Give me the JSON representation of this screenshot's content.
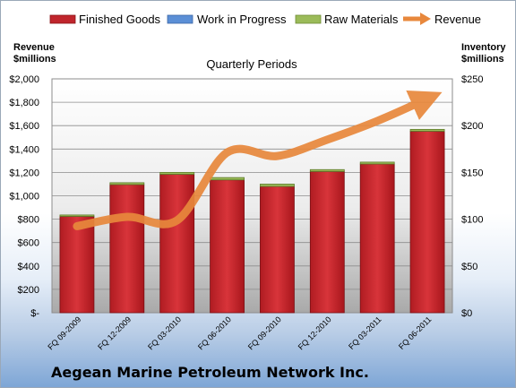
{
  "company": "Aegean Marine Petroleum Network Inc.",
  "chart_data": {
    "type": "bar",
    "subtitle": "Quarterly Periods",
    "categories": [
      "FQ 09-2009",
      "FQ 12-2009",
      "FQ 03-2010",
      "FQ 06-2010",
      "FQ 09-2010",
      "FQ 12-2010",
      "FQ 03-2011",
      "FQ 06-2011"
    ],
    "series": [
      {
        "name": "Finished Goods",
        "type": "stacked-bar",
        "axis": "right",
        "color": "#c0252c",
        "values": [
          103,
          137,
          148,
          142,
          135,
          151,
          159,
          194
        ]
      },
      {
        "name": "Work in Progress",
        "type": "stacked-bar",
        "axis": "right",
        "color": "#5b8fd6",
        "values": [
          0,
          0,
          0,
          0,
          0,
          0,
          0,
          0
        ]
      },
      {
        "name": "Raw Materials",
        "type": "stacked-bar",
        "axis": "right",
        "color": "#9bbb59",
        "values": [
          1.5,
          2,
          2,
          2.5,
          2.5,
          2,
          2,
          2
        ]
      },
      {
        "name": "Revenue",
        "type": "line",
        "axis": "left",
        "color": "#e8883c",
        "values": [
          740,
          820,
          790,
          1370,
          1340,
          1480,
          1640,
          1830
        ]
      }
    ],
    "left_axis": {
      "label_line1": "Revenue",
      "label_line2": "$millions",
      "min": 0,
      "max": 2000,
      "ticks": [
        "$-",
        "$200",
        "$400",
        "$600",
        "$800",
        "$1,000",
        "$1,200",
        "$1,400",
        "$1,600",
        "$1,800",
        "$2,000"
      ]
    },
    "right_axis": {
      "label_line1": "Inventory",
      "label_line2": "$millions",
      "min": 0,
      "max": 250,
      "ticks": [
        "$0",
        "$50",
        "$100",
        "$150",
        "$200",
        "$250"
      ]
    },
    "grid": true,
    "legend_position": "top"
  }
}
